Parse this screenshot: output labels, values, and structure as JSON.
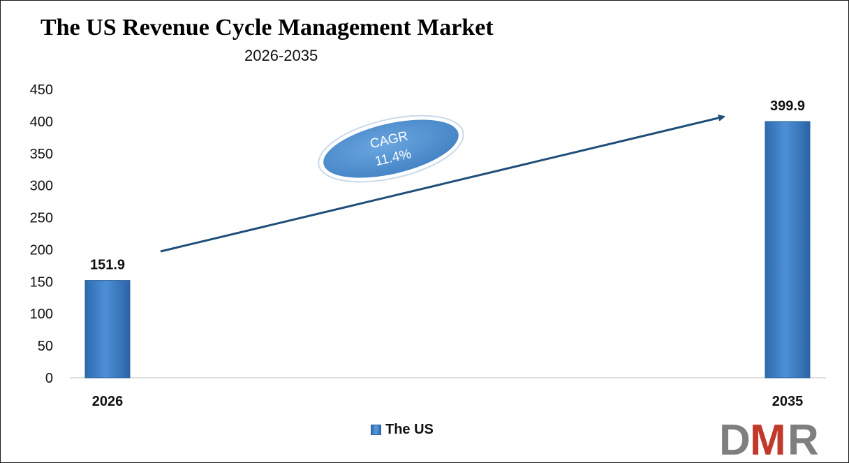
{
  "chart_data": {
    "type": "bar",
    "title": "The US Revenue Cycle Management Market",
    "subtitle": "2026-2035",
    "categories": [
      "2026",
      "2035"
    ],
    "series": [
      {
        "name": "The US",
        "values": [
          151.9,
          399.9
        ]
      }
    ],
    "data_labels": [
      "151.9",
      "399.9"
    ],
    "ylim": [
      0,
      450
    ],
    "yticks": [
      "0",
      "50",
      "100",
      "150",
      "200",
      "250",
      "300",
      "350",
      "400",
      "450"
    ],
    "legend": "bottom-center",
    "grid": false,
    "annotation": {
      "line1": "CAGR",
      "line2": "11.4%"
    },
    "colors": {
      "bar": "#3a7fc9",
      "arrow": "#1f4e79",
      "ellipse": "#4f8fd0"
    }
  },
  "logo": {
    "text": "DMR",
    "colors": {
      "d": "#7f7f7f",
      "m": "#c0392b",
      "r": "#7f7f7f"
    }
  }
}
